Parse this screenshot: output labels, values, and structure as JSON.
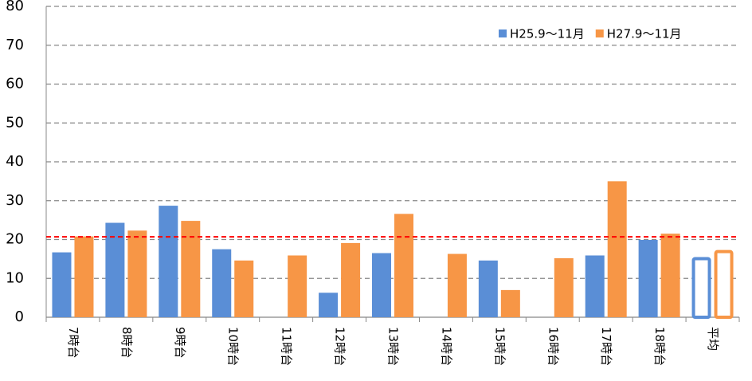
{
  "chart_data": {
    "type": "bar",
    "categories": [
      "7時台",
      "8時台",
      "9時台",
      "10時台",
      "11時台",
      "12時台",
      "13時台",
      "14時台",
      "15時台",
      "16時台",
      "17時台",
      "18時台",
      "平均"
    ],
    "series": [
      {
        "name": "H25.9～11月",
        "color": "#5a8ed6",
        "values": [
          16.7,
          24.3,
          28.7,
          17.5,
          null,
          6.3,
          16.5,
          null,
          14.6,
          null,
          15.9,
          19.9,
          15.5
        ]
      },
      {
        "name": "H27.9～11月",
        "color": "#f79646",
        "values": [
          20.8,
          22.3,
          24.8,
          14.6,
          15.9,
          19.1,
          26.6,
          16.3,
          7.0,
          15.2,
          35.0,
          21.5,
          17.3
        ]
      }
    ],
    "ylim": [
      0,
      80
    ],
    "yticks": [
      0,
      10,
      20,
      30,
      40,
      50,
      60,
      70,
      80
    ],
    "grid": true,
    "reference_line": {
      "value": 20.7,
      "color": "#ff0000"
    },
    "hollow_last": true,
    "legend": "top-right"
  }
}
